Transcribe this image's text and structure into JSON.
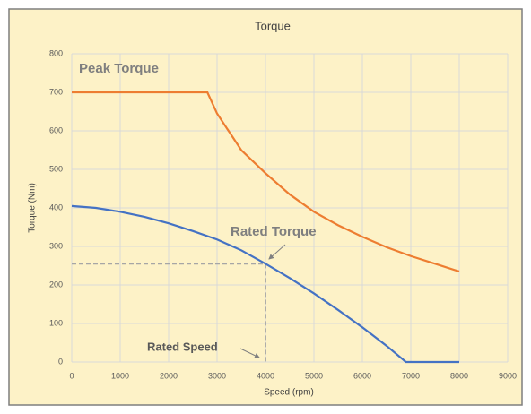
{
  "chart_data": {
    "type": "line",
    "title": "Torque",
    "x_label": "Speed (rpm)",
    "y_label": "Torque (Nm)",
    "xlim": [
      0,
      9000
    ],
    "xticks": [
      0,
      1000,
      2000,
      3000,
      4000,
      5000,
      6000,
      7000,
      8000,
      9000
    ],
    "ylim": [
      0,
      800
    ],
    "yticks": [
      0,
      100,
      200,
      300,
      400,
      500,
      600,
      700,
      800
    ],
    "grid": true,
    "series": [
      {
        "name": "Peak Torque",
        "color": "#ed7d31",
        "x": [
          0,
          2800,
          3000,
          3500,
          4000,
          4500,
          5000,
          5500,
          6000,
          6500,
          7000,
          7500,
          8000
        ],
        "values": [
          700,
          700,
          645,
          550,
          490,
          435,
          390,
          355,
          325,
          298,
          275,
          255,
          235
        ]
      },
      {
        "name": "Rated Torque",
        "color": "#4472c4",
        "x": [
          0,
          500,
          1000,
          1500,
          2000,
          2500,
          3000,
          3500,
          4000,
          4500,
          5000,
          5500,
          6000,
          6500,
          6900,
          7000,
          8000
        ],
        "values": [
          405,
          400,
          390,
          377,
          360,
          340,
          318,
          290,
          255,
          218,
          178,
          135,
          90,
          42,
          0,
          0,
          0
        ]
      }
    ],
    "rated_speed_label": "Rated Speed",
    "rated_point": {
      "x": 4000,
      "y": 255
    }
  }
}
